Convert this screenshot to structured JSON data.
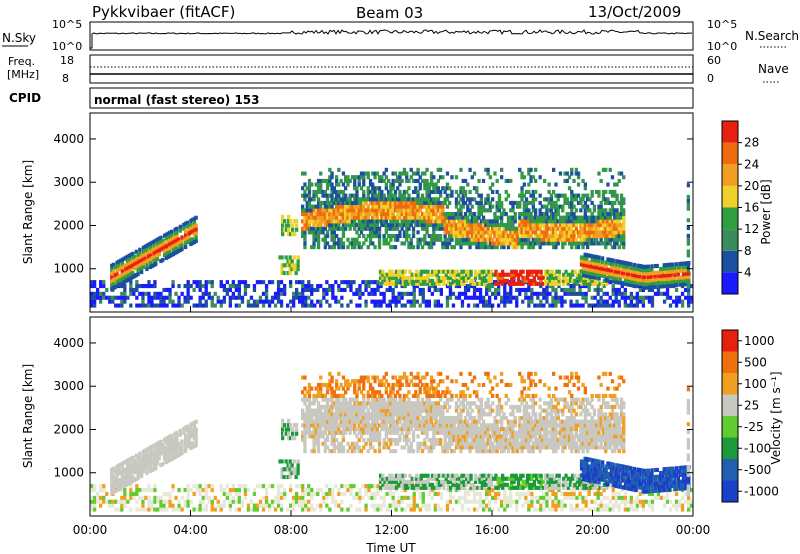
{
  "header": {
    "station": "Pykkvibaer (fitACF)",
    "beam": "Beam 03",
    "date": "13/Oct/2009"
  },
  "aux": {
    "nsky_label": "N.Sky",
    "nsearch_label": "N.Search",
    "freq_label_1": "Freq.",
    "freq_label_2": "[MHz]",
    "nave_label": "Nave",
    "cpid_label": "CPID",
    "mode": "normal (fast stereo) 153",
    "nsky_ticks": [
      "10^5",
      "10^0"
    ],
    "nsearch_ticks": [
      "10^5",
      "10^0"
    ],
    "freq_ticks": [
      "18",
      "8"
    ],
    "nave_ticks": [
      "60",
      "0"
    ]
  },
  "colors": {
    "power_scale": [
      "#1a1aff",
      "#1d4fa0",
      "#3a8c5a",
      "#2e9e3e",
      "#f0d02a",
      "#f0a020",
      "#f06a10",
      "#e82010"
    ],
    "velocity_scale": [
      "#1a40c8",
      "#2060b0",
      "#1a9a3a",
      "#60cc30",
      "#c8c8c0",
      "#f0a020",
      "#f07010",
      "#e82010"
    ]
  },
  "chart_data": [
    {
      "type": "heatmap",
      "name": "power-panel",
      "ylabel": "Slant Range [km]",
      "ylim": [
        0,
        4600
      ],
      "yticks": [
        "1000",
        "2000",
        "3000",
        "4000"
      ],
      "xlim": [
        0,
        24
      ],
      "xticks": [
        "00:00",
        "04:00",
        "08:00",
        "12:00",
        "16:00",
        "20:00",
        "00:00"
      ],
      "colorbar": {
        "label": "Power [dB]",
        "ticks": [
          "4",
          "8",
          "12",
          "16",
          "20",
          "24",
          "28"
        ]
      }
    },
    {
      "type": "heatmap",
      "name": "velocity-panel",
      "ylabel": "Slant Range [km]",
      "ylim": [
        0,
        4600
      ],
      "yticks": [
        "1000",
        "2000",
        "3000",
        "4000"
      ],
      "xlim": [
        0,
        24
      ],
      "xticks": [
        "00:00",
        "04:00",
        "08:00",
        "12:00",
        "16:00",
        "20:00",
        "00:00"
      ],
      "xlabel": "Time UT",
      "colorbar": {
        "label": "Velocity [m s⁻¹]",
        "ticks": [
          "1000",
          "500",
          "100",
          "25",
          "-25",
          "-100",
          "-500",
          "-1000"
        ]
      }
    }
  ]
}
